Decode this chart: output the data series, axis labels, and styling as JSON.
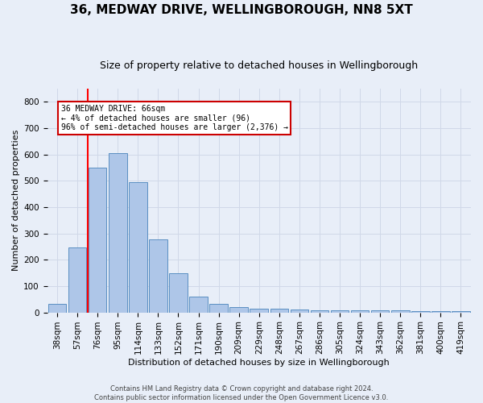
{
  "title": "36, MEDWAY DRIVE, WELLINGBOROUGH, NN8 5XT",
  "subtitle": "Size of property relative to detached houses in Wellingborough",
  "xlabel": "Distribution of detached houses by size in Wellingborough",
  "ylabel": "Number of detached properties",
  "categories": [
    "38sqm",
    "57sqm",
    "76sqm",
    "95sqm",
    "114sqm",
    "133sqm",
    "152sqm",
    "171sqm",
    "190sqm",
    "209sqm",
    "229sqm",
    "248sqm",
    "267sqm",
    "286sqm",
    "305sqm",
    "324sqm",
    "343sqm",
    "362sqm",
    "381sqm",
    "400sqm",
    "419sqm"
  ],
  "values": [
    32,
    248,
    550,
    605,
    495,
    278,
    148,
    60,
    31,
    20,
    15,
    15,
    12,
    7,
    7,
    8,
    8,
    7,
    5,
    5,
    5
  ],
  "bar_color": "#aec6e8",
  "bar_edge_color": "#5a8fc2",
  "grid_color": "#d0d8e8",
  "background_color": "#e8eef8",
  "red_line_x": 1.5,
  "annotation_text": "36 MEDWAY DRIVE: 66sqm\n← 4% of detached houses are smaller (96)\n96% of semi-detached houses are larger (2,376) →",
  "annotation_box_color": "#ffffff",
  "annotation_box_edge": "#cc0000",
  "footer_line1": "Contains HM Land Registry data © Crown copyright and database right 2024.",
  "footer_line2": "Contains public sector information licensed under the Open Government Licence v3.0.",
  "ylim": [
    0,
    850
  ],
  "yticks": [
    0,
    100,
    200,
    300,
    400,
    500,
    600,
    700,
    800
  ],
  "title_fontsize": 11,
  "subtitle_fontsize": 9,
  "xlabel_fontsize": 8,
  "ylabel_fontsize": 8,
  "tick_fontsize": 7.5,
  "ann_fontsize": 7,
  "footer_fontsize": 6
}
